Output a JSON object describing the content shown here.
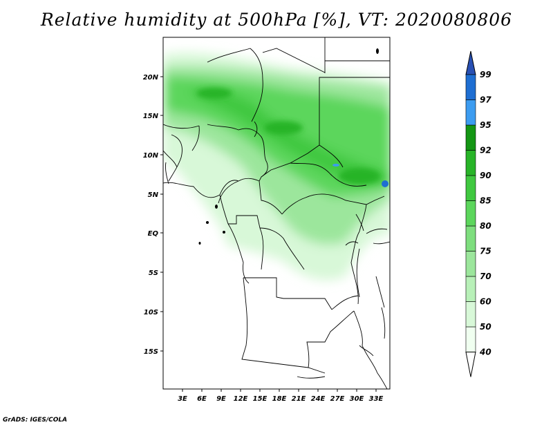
{
  "title": "Relative humidity at 500hPa [%], VT: 2020080806",
  "credit": "GrADS: IGES/COLA",
  "map": {
    "lon_labels": [
      "3E",
      "6E",
      "9E",
      "12E",
      "15E",
      "18E",
      "21E",
      "24E",
      "27E",
      "30E",
      "33E"
    ],
    "lat_labels": [
      "20N",
      "15N",
      "10N",
      "5N",
      "EQ",
      "5S",
      "10S",
      "15S"
    ]
  },
  "colorbar": {
    "labels": [
      "40",
      "50",
      "60",
      "70",
      "75",
      "80",
      "85",
      "90",
      "92",
      "95",
      "97",
      "99"
    ],
    "colors": [
      "#f0fff0",
      "#d8f8d8",
      "#b8f0b8",
      "#9ce69c",
      "#7ede7e",
      "#5cd65c",
      "#40c840",
      "#28b428",
      "#149614",
      "#3c9cf0",
      "#1e6ed2",
      "#2850b4"
    ],
    "below_color": "#ffffff",
    "above_color": "#2850b4"
  }
}
